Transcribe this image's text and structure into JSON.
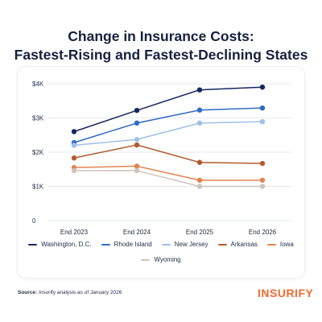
{
  "title_line1": "Change in Insurance Costs:",
  "title_line2": "Fastest-Rising and Fastest-Declining States",
  "source_label": "Source:",
  "source_text": "Insurify analysis as of January 2026",
  "logo_text": "INSURIFY",
  "chart_data": {
    "type": "line",
    "x": [
      "End 2023",
      "End 2024",
      "End 2025",
      "End 2026"
    ],
    "y_ticks": [
      "0",
      "$1K",
      "$2K",
      "$3K",
      "$4K"
    ],
    "ylim": [
      0,
      4000
    ],
    "grid": true,
    "legend_placement": "bottom",
    "series": [
      {
        "name": "Washington, D.C.",
        "color": "#16275f",
        "values": [
          2600,
          3220,
          3820,
          3900
        ]
      },
      {
        "name": "Rhode Island",
        "color": "#2f6bc7",
        "values": [
          2280,
          2850,
          3230,
          3290
        ]
      },
      {
        "name": "New Jersey",
        "color": "#9dc0e8",
        "values": [
          2200,
          2370,
          2850,
          2890
        ]
      },
      {
        "name": "Arkansas",
        "color": "#b45a2e",
        "values": [
          1830,
          2210,
          1700,
          1670
        ]
      },
      {
        "name": "Iowa",
        "color": "#e2844f",
        "values": [
          1550,
          1590,
          1180,
          1180
        ]
      },
      {
        "name": "Wyoming",
        "color": "#cfc4ba",
        "values": [
          1460,
          1460,
          1000,
          1000
        ]
      }
    ]
  }
}
